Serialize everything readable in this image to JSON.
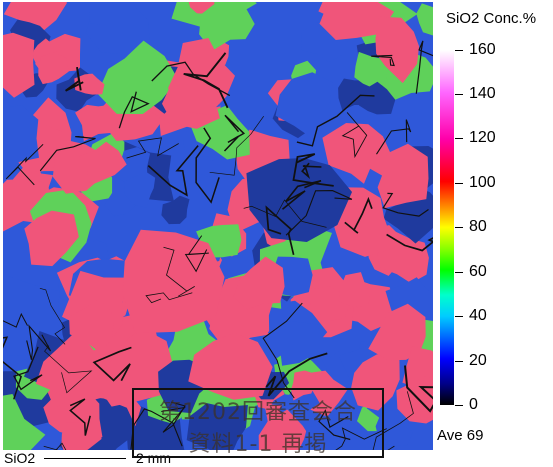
{
  "colorbar": {
    "title": "SiO2  Conc.%",
    "ticks": [
      "160",
      "140",
      "120",
      "100",
      "80",
      "60",
      "40",
      "20",
      "0"
    ]
  },
  "average": "Ave 69",
  "scale": {
    "element": "SiO2",
    "length": "2 mm"
  },
  "stamp": {
    "line1": "第1202回審査会合",
    "line2": "資料1-1  再掲"
  },
  "colors": {
    "pink": "#f0557a",
    "green": "#5fd15a",
    "blue": "#2f58d9",
    "darkblue": "#1f3a9e"
  },
  "chart_data": {
    "type": "heatmap",
    "title": "SiO2  Conc.%",
    "colorbar_range": [
      0,
      160
    ],
    "colorbar_ticks": [
      0,
      20,
      40,
      60,
      80,
      100,
      120,
      140,
      160
    ],
    "average": 69,
    "scale_bar": "2 mm"
  }
}
